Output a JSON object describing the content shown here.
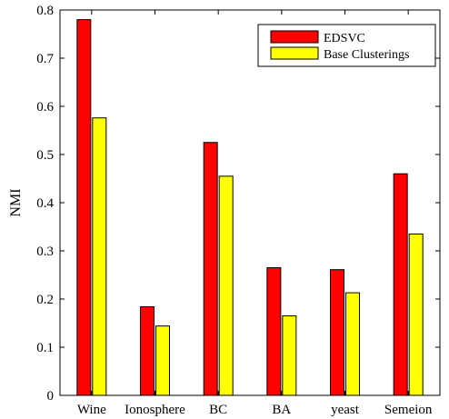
{
  "chart_data": {
    "type": "bar",
    "title": "",
    "xlabel": "",
    "ylabel": "NMI",
    "ylim": [
      0,
      0.8
    ],
    "yticks": [
      "0",
      "0.1",
      "0.2",
      "0.3",
      "0.4",
      "0.5",
      "0.6",
      "0.7",
      "0.8"
    ],
    "categories": [
      "Wine",
      "Ionosphere",
      "BC",
      "BA",
      "yeast",
      "Semeion"
    ],
    "series": [
      {
        "name": "EDSVC",
        "color": "#ff0000",
        "values": [
          0.78,
          0.184,
          0.525,
          0.265,
          0.261,
          0.46
        ]
      },
      {
        "name": "Base Clusterings",
        "color": "#ffff00",
        "values": [
          0.576,
          0.144,
          0.455,
          0.165,
          0.213,
          0.335
        ]
      }
    ],
    "legend_position": "top-right",
    "grid": false
  }
}
